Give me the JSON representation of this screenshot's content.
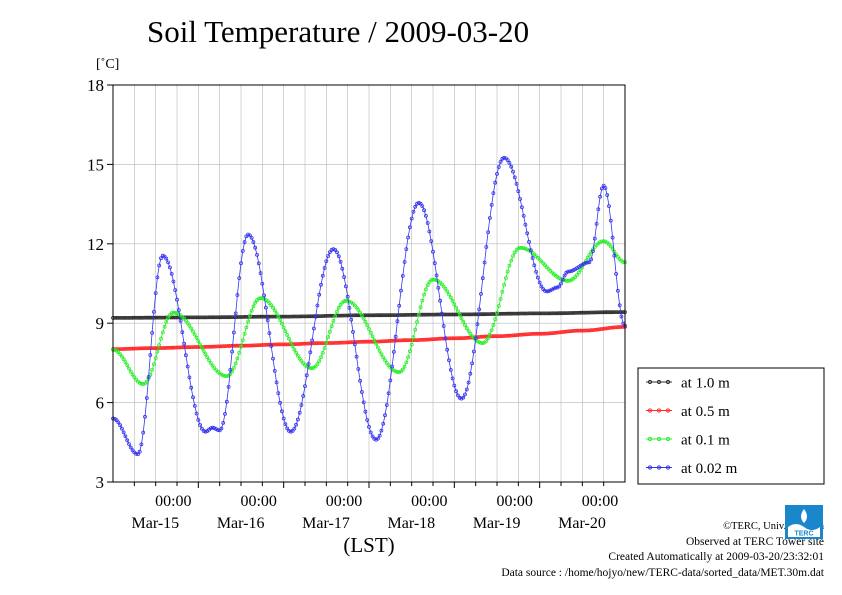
{
  "chart_data": {
    "type": "line",
    "title": "Soil Temperature / 2009-03-20",
    "ylabel": "[˚C]",
    "xlabel": "(LST)",
    "ylim": [
      3,
      18
    ],
    "yticks": [
      3,
      6,
      9,
      12,
      15,
      18
    ],
    "xlim_hours": [
      0,
      144
    ],
    "x_ticks": [
      {
        "time": "00:00",
        "date": "Mar-15"
      },
      {
        "time": "00:00",
        "date": "Mar-16"
      },
      {
        "time": "00:00",
        "date": "Mar-17"
      },
      {
        "time": "00:00",
        "date": "Mar-18"
      },
      {
        "time": "00:00",
        "date": "Mar-19"
      },
      {
        "time": "00:00",
        "date": "Mar-20"
      }
    ],
    "grid": true,
    "legend_position": "right",
    "sample_interval_hours": 0.5,
    "series": [
      {
        "name": "at 1.0 m",
        "color": "#303030",
        "x_hours": [
          0,
          24,
          48,
          72,
          96,
          120,
          144
        ],
        "values": [
          9.2,
          9.22,
          9.25,
          9.3,
          9.33,
          9.37,
          9.42
        ]
      },
      {
        "name": "at 0.5 m",
        "color": "#ff2a2a",
        "x_hours": [
          0,
          12,
          24,
          36,
          48,
          60,
          72,
          84,
          96,
          108,
          120,
          132,
          144
        ],
        "values": [
          8.02,
          8.06,
          8.1,
          8.15,
          8.2,
          8.25,
          8.3,
          8.36,
          8.43,
          8.51,
          8.6,
          8.72,
          8.86
        ]
      },
      {
        "name": "at 0.1 m",
        "color": "#2aee2a",
        "x_hours": [
          0,
          8.5,
          17,
          32,
          41.5,
          56,
          65.5,
          80.5,
          90,
          104,
          114.5,
          128,
          138,
          144
        ],
        "values": [
          8.0,
          6.7,
          9.4,
          7.0,
          9.95,
          7.3,
          9.85,
          7.15,
          10.65,
          8.25,
          11.85,
          10.6,
          12.1,
          11.3
        ]
      },
      {
        "name": "at 0.02 m",
        "color": "#3535ee",
        "x_hours": [
          0,
          7,
          14,
          26,
          28,
          30,
          38,
          50,
          62,
          74,
          86,
          98,
          110,
          122,
          125,
          128,
          134,
          138,
          144
        ],
        "values": [
          5.4,
          4.05,
          11.55,
          4.9,
          5.05,
          4.95,
          12.35,
          4.9,
          11.8,
          4.6,
          13.55,
          6.15,
          15.25,
          10.2,
          10.35,
          10.95,
          11.3,
          14.2,
          8.9
        ]
      }
    ]
  },
  "credits": {
    "copyright": "©TERC, Univ. Tsukuba",
    "observed": "Observed at TERC Tower site",
    "created": "Created Automatically at 2009-03-20/23:32:01",
    "source": "Data source : /home/hojyo/new/TERC-data/sorted_data/MET.30m.dat"
  },
  "logo": {
    "text": "TERC",
    "color": "#1a86cc"
  }
}
